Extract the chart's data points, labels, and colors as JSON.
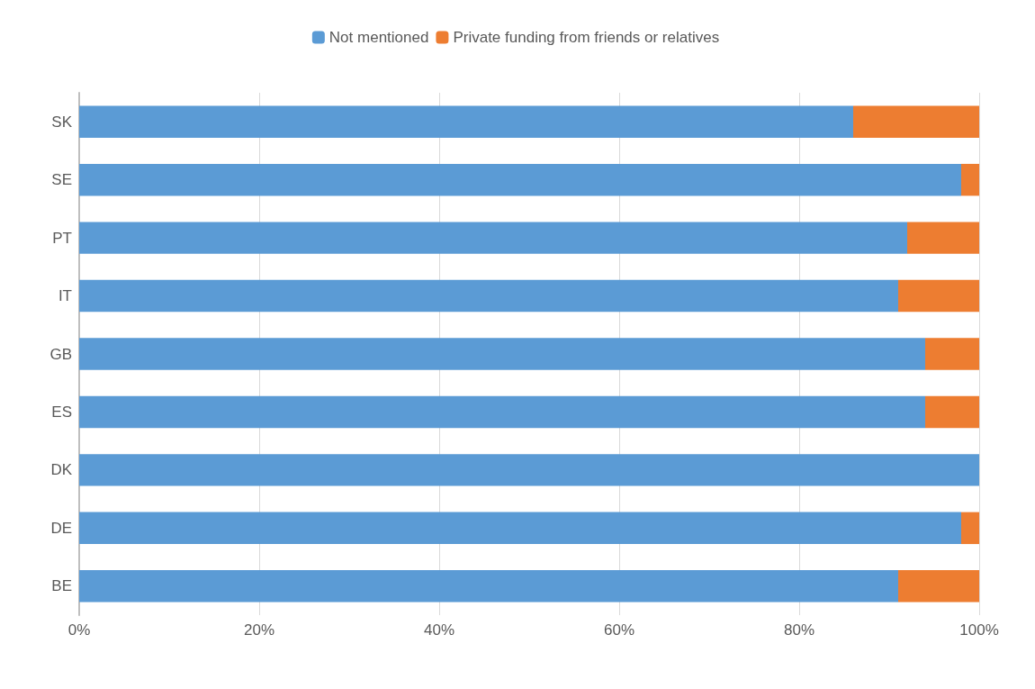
{
  "chart_data": {
    "type": "bar",
    "orientation": "horizontal",
    "stacked": true,
    "categories": [
      "SK",
      "SE",
      "PT",
      "IT",
      "GB",
      "ES",
      "DK",
      "DE",
      "BE"
    ],
    "series": [
      {
        "name": "Not mentioned",
        "color": "#5b9bd5",
        "values": [
          86,
          98,
          92,
          91,
          94,
          94,
          100,
          98,
          91
        ]
      },
      {
        "name": "Private funding from friends or relatives",
        "color": "#ed7d31",
        "values": [
          14,
          2,
          8,
          9,
          6,
          6,
          0,
          2,
          9
        ]
      }
    ],
    "xlim": [
      0,
      100
    ],
    "xticks": [
      {
        "value": 0,
        "label": "0%"
      },
      {
        "value": 20,
        "label": "20%"
      },
      {
        "value": 40,
        "label": "40%"
      },
      {
        "value": 60,
        "label": "60%"
      },
      {
        "value": 80,
        "label": "80%"
      },
      {
        "value": 100,
        "label": "100%"
      }
    ],
    "grid": "x",
    "legend": "top"
  }
}
